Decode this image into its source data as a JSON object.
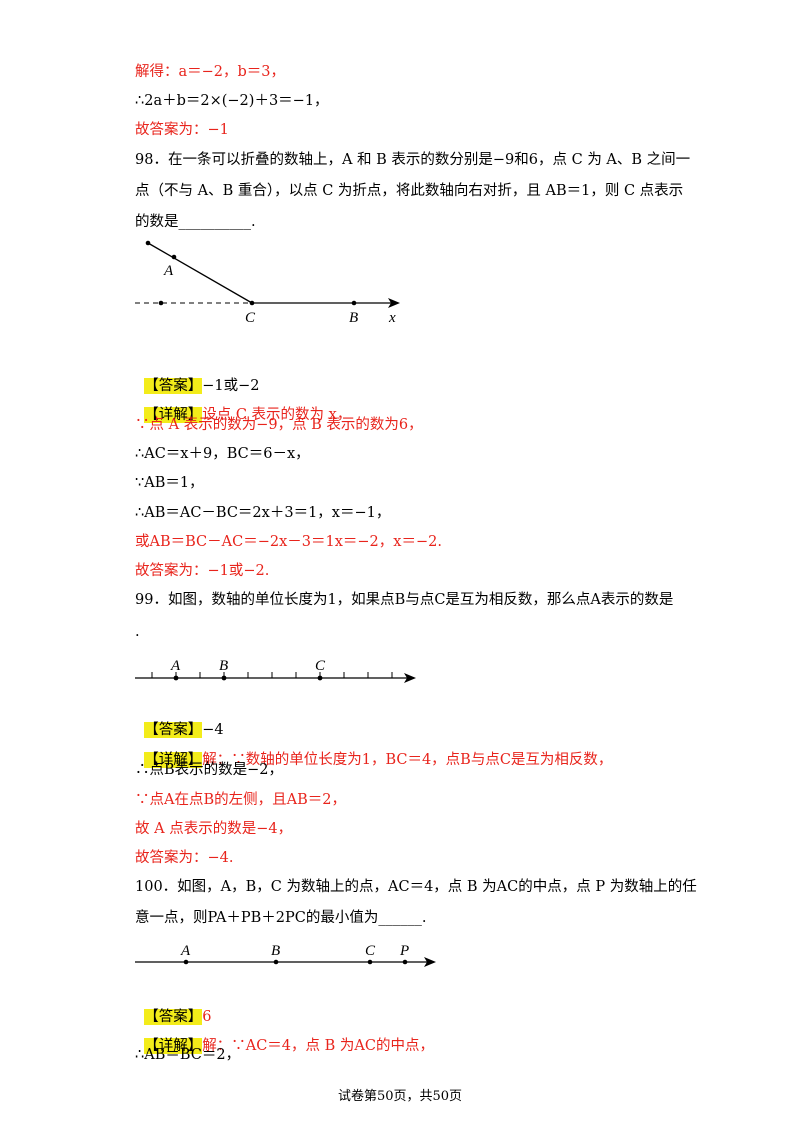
{
  "lines": [
    {
      "text": "解得：a＝−2，b＝3，",
      "style": "red"
    },
    {
      "text": "∴2a＋b＝2×(−2)＋3＝−1，",
      "style": "black"
    },
    {
      "text": "故答案为：−1",
      "style": "mixed"
    },
    {
      "text": "98．在一条可以折叠的数轴上，A 和 B 表示的数分别是−9和6，点 C 为 A、B 之间一",
      "style": "black"
    },
    {
      "text": "点（不与 A、B 重合），以点 C 为折点，将此数轴向右对折，且 AB＝1，则 C 点表示",
      "style": "black"
    },
    {
      "text": "的数是__________.",
      "style": "black"
    }
  ],
  "q98": {
    "answer_tag": "【答案】",
    "answer": "−1或−2",
    "detail_tag": "【详解】",
    "detail": [
      "设点 C 表示的数为 x，",
      "∵点 A 表示的数为−9，点 B 表示的数为6，",
      "∴AC＝x＋9，BC＝6－x，",
      "∵AB＝1，",
      "∴AB＝AC－BC＝2x＋3＝1，x＝−1，",
      "或AB＝BC－AC＝−2x－3＝1x＝−2，x＝−2.",
      "故答案为：−1或−2."
    ],
    "fig_labels": {
      "A": "A",
      "C": "C",
      "B": "B",
      "x": "x"
    }
  },
  "q99": {
    "stem1": "99．如图，数轴的单位长度为1，如果点B与点C是互为相反数，那么点A表示的数是",
    "stem2": ".",
    "answer_tag": "【答案】",
    "answer": "−4",
    "detail_tag": "【详解】",
    "detail": [
      "解：∵数轴的单位长度为1，BC＝4，点B与点C是互为相反数，",
      "∴点B表示的数是−2，",
      "∵点A在点B的左侧，且AB＝2，",
      "故 A 点表示的数是−4，",
      "故答案为：−4."
    ],
    "fig_labels": {
      "A": "A",
      "B": "B",
      "C": "C"
    }
  },
  "q100": {
    "stem1": "100．如图，A，B，C 为数轴上的点，AC＝4，点 B 为AC的中点，点 P 为数轴上的任",
    "stem2": "意一点，则PA＋PB＋2PC的最小值为______.",
    "answer_tag": "【答案】",
    "answer": "6",
    "detail_tag": "【详解】",
    "detail": [
      "解：∵AC＝4，点 B 为AC的中点，",
      "∴AB＝BC＝2，"
    ],
    "fig_labels": {
      "A": "A",
      "B": "B",
      "C": "C",
      "P": "P"
    }
  },
  "footer": "试卷第50页，共50页"
}
